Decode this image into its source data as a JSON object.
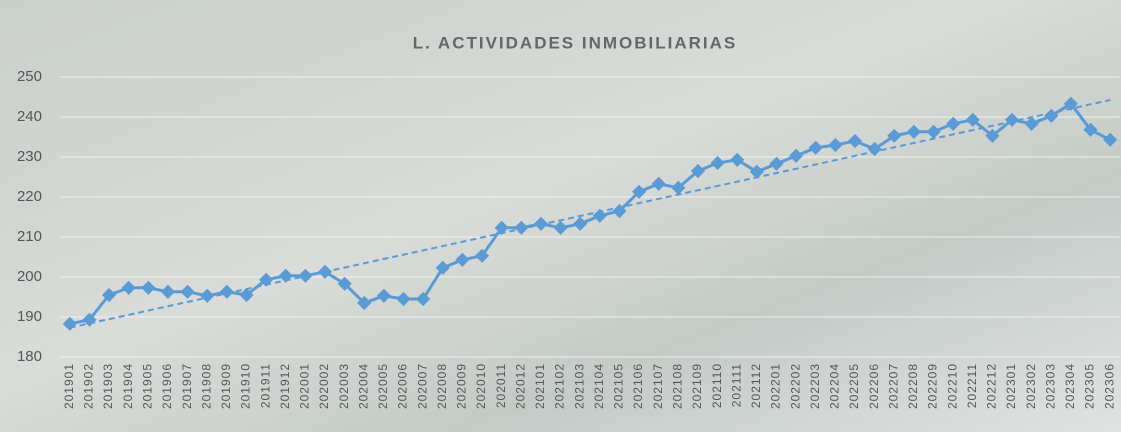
{
  "chart_data": {
    "type": "line",
    "title": "L. ACTIVIDADES INMOBILIARIAS",
    "categories": [
      "201901",
      "201902",
      "201903",
      "201904",
      "201905",
      "201906",
      "201907",
      "201908",
      "201909",
      "201910",
      "201911",
      "201912",
      "202001",
      "202002",
      "202003",
      "202004",
      "202005",
      "202006",
      "202007",
      "202008",
      "202009",
      "202010",
      "202011",
      "202012",
      "202101",
      "202102",
      "202103",
      "202104",
      "202105",
      "202106",
      "202107",
      "202108",
      "202109",
      "202110",
      "202111",
      "202112",
      "202201",
      "202202",
      "202203",
      "202204",
      "202205",
      "202206",
      "202207",
      "202208",
      "202209",
      "202210",
      "202211",
      "202212",
      "202301",
      "202302",
      "202303",
      "202304",
      "202305",
      "202306"
    ],
    "series": [
      {
        "color": "#5b9bd5",
        "values": [
          188.3,
          189.3,
          195.5,
          197.3,
          197.3,
          196.3,
          196.3,
          195.3,
          196.3,
          195.5,
          199.3,
          200.3,
          200.3,
          201.3,
          198.3,
          193.5,
          195.3,
          194.5,
          194.5,
          202.3,
          204.3,
          205.3,
          212.3,
          212.3,
          213.3,
          212.3,
          213.3,
          215.3,
          216.5,
          221.3,
          223.3,
          222.3,
          226.5,
          228.5,
          229.3,
          226.3,
          228.3,
          230.3,
          232.3,
          233,
          234,
          232,
          235.3,
          236.3,
          236.3,
          238.3,
          239.3,
          235.3,
          239.3,
          238.3,
          240.3,
          243.3,
          236.8,
          234.3
        ]
      }
    ],
    "trendline": true,
    "ylim": [
      180,
      250
    ],
    "yticks": [
      180,
      190,
      200,
      210,
      220,
      230,
      240,
      250
    ],
    "grid": true
  }
}
